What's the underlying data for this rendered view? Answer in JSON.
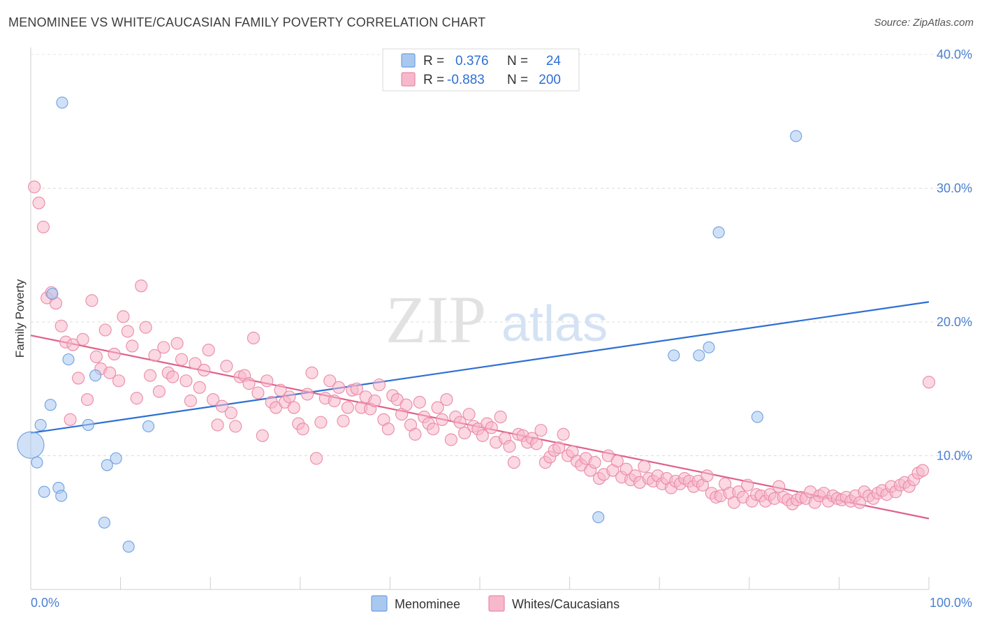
{
  "header": {
    "title": "MENOMINEE VS WHITE/CAUCASIAN FAMILY POVERTY CORRELATION CHART",
    "source": "Source: ZipAtlas.com"
  },
  "watermark": {
    "zip": "ZIP",
    "atlas": "atlas"
  },
  "legend": {
    "rows": [
      {
        "r_label": "R =",
        "r_value": "0.376",
        "n_label": "N =",
        "n_value": "24",
        "color": "#a9c8f0"
      },
      {
        "r_label": "R =",
        "r_value": "-0.883",
        "n_label": "N =",
        "n_value": "200",
        "color": "#f7b8cb"
      }
    ]
  },
  "chart_data": {
    "type": "scatter",
    "title": "MENOMINEE VS WHITE/CAUCASIAN FAMILY POVERTY CORRELATION CHART",
    "xlabel": "",
    "ylabel": "Family Poverty",
    "xlim": [
      0,
      100
    ],
    "ylim": [
      0,
      42
    ],
    "x_tick_labels": [
      "0.0%",
      "100.0%"
    ],
    "y_ticks": [
      10,
      20,
      30,
      40
    ],
    "y_tick_labels": [
      "10.0%",
      "20.0%",
      "30.0%",
      "40.0%"
    ],
    "grid": "horizontal dashed",
    "legend_position": "top-center",
    "series": [
      {
        "name": "Menominee",
        "color": "#a9c8f0",
        "stroke": "#6e9fe0",
        "trend_color": "#2e6fd3",
        "trend": [
          [
            0,
            11.7
          ],
          [
            100,
            21.5
          ]
        ],
        "points": [
          [
            3.5,
            36.4
          ],
          [
            0.0,
            10.8
          ],
          [
            0.7,
            9.5
          ],
          [
            1.1,
            12.3
          ],
          [
            1.5,
            7.3
          ],
          [
            2.2,
            13.8
          ],
          [
            2.4,
            22.1
          ],
          [
            3.1,
            7.6
          ],
          [
            3.4,
            7.0
          ],
          [
            4.2,
            17.2
          ],
          [
            6.4,
            12.3
          ],
          [
            7.2,
            16.0
          ],
          [
            8.2,
            5.0
          ],
          [
            8.5,
            9.3
          ],
          [
            9.5,
            9.8
          ],
          [
            10.9,
            3.2
          ],
          [
            13.1,
            12.2
          ],
          [
            63.2,
            5.4
          ],
          [
            71.6,
            17.5
          ],
          [
            74.4,
            17.5
          ],
          [
            75.5,
            18.1
          ],
          [
            76.6,
            26.7
          ],
          [
            80.9,
            12.9
          ],
          [
            85.2,
            33.9
          ]
        ]
      },
      {
        "name": "Whites/Caucasians",
        "color": "#f7b8cb",
        "stroke": "#e98aa8",
        "trend_color": "#e0608b",
        "trend": [
          [
            0,
            19.0
          ],
          [
            100,
            5.3
          ]
        ],
        "points": [
          [
            0.4,
            30.1
          ],
          [
            0.9,
            28.9
          ],
          [
            1.4,
            27.1
          ],
          [
            1.8,
            21.8
          ],
          [
            2.3,
            22.2
          ],
          [
            2.8,
            21.4
          ],
          [
            3.4,
            19.7
          ],
          [
            3.9,
            18.5
          ],
          [
            4.4,
            12.7
          ],
          [
            4.7,
            18.3
          ],
          [
            5.3,
            15.8
          ],
          [
            5.8,
            18.7
          ],
          [
            6.3,
            14.2
          ],
          [
            6.8,
            21.6
          ],
          [
            7.3,
            17.4
          ],
          [
            7.8,
            16.5
          ],
          [
            8.3,
            19.4
          ],
          [
            8.8,
            16.2
          ],
          [
            9.3,
            17.6
          ],
          [
            9.8,
            15.6
          ],
          [
            10.3,
            20.4
          ],
          [
            10.8,
            19.3
          ],
          [
            11.3,
            18.2
          ],
          [
            11.8,
            14.3
          ],
          [
            12.3,
            22.7
          ],
          [
            12.8,
            19.6
          ],
          [
            13.3,
            16.0
          ],
          [
            13.8,
            17.5
          ],
          [
            14.3,
            14.8
          ],
          [
            14.8,
            18.1
          ],
          [
            15.3,
            16.2
          ],
          [
            15.8,
            15.9
          ],
          [
            16.3,
            18.4
          ],
          [
            16.8,
            17.2
          ],
          [
            17.3,
            15.6
          ],
          [
            17.8,
            14.1
          ],
          [
            18.3,
            16.9
          ],
          [
            18.8,
            15.1
          ],
          [
            19.3,
            16.4
          ],
          [
            19.8,
            17.9
          ],
          [
            20.3,
            14.2
          ],
          [
            20.8,
            12.3
          ],
          [
            21.3,
            13.7
          ],
          [
            21.8,
            16.7
          ],
          [
            22.3,
            13.2
          ],
          [
            22.8,
            12.2
          ],
          [
            23.3,
            15.9
          ],
          [
            23.8,
            16.0
          ],
          [
            24.3,
            15.4
          ],
          [
            24.8,
            18.8
          ],
          [
            25.3,
            14.7
          ],
          [
            25.8,
            11.5
          ],
          [
            26.3,
            15.6
          ],
          [
            26.8,
            14.0
          ],
          [
            27.3,
            13.6
          ],
          [
            27.8,
            14.9
          ],
          [
            28.3,
            14.0
          ],
          [
            28.8,
            14.4
          ],
          [
            29.3,
            13.6
          ],
          [
            29.8,
            12.4
          ],
          [
            30.3,
            12.0
          ],
          [
            30.8,
            14.6
          ],
          [
            31.3,
            16.2
          ],
          [
            31.8,
            9.8
          ],
          [
            32.3,
            12.5
          ],
          [
            32.8,
            14.3
          ],
          [
            33.3,
            15.6
          ],
          [
            33.8,
            14.1
          ],
          [
            34.3,
            15.1
          ],
          [
            34.8,
            12.6
          ],
          [
            35.3,
            13.6
          ],
          [
            35.8,
            14.9
          ],
          [
            36.3,
            15.0
          ],
          [
            36.8,
            13.6
          ],
          [
            37.3,
            14.4
          ],
          [
            37.8,
            13.5
          ],
          [
            38.3,
            14.1
          ],
          [
            38.8,
            15.3
          ],
          [
            39.3,
            12.7
          ],
          [
            39.8,
            12.0
          ],
          [
            40.3,
            14.5
          ],
          [
            40.8,
            14.2
          ],
          [
            41.3,
            13.1
          ],
          [
            41.8,
            13.8
          ],
          [
            42.3,
            12.3
          ],
          [
            42.8,
            11.6
          ],
          [
            43.3,
            14.0
          ],
          [
            43.8,
            12.9
          ],
          [
            44.3,
            12.4
          ],
          [
            44.8,
            12.0
          ],
          [
            45.3,
            13.6
          ],
          [
            45.8,
            12.7
          ],
          [
            46.3,
            14.2
          ],
          [
            46.8,
            11.2
          ],
          [
            47.3,
            12.9
          ],
          [
            47.8,
            12.5
          ],
          [
            48.3,
            11.7
          ],
          [
            48.8,
            13.1
          ],
          [
            49.3,
            12.2
          ],
          [
            49.8,
            12.0
          ],
          [
            50.3,
            11.5
          ],
          [
            50.8,
            12.4
          ],
          [
            51.3,
            12.1
          ],
          [
            51.8,
            11.0
          ],
          [
            52.3,
            12.9
          ],
          [
            52.8,
            11.3
          ],
          [
            53.3,
            10.7
          ],
          [
            53.8,
            9.5
          ],
          [
            54.3,
            11.6
          ],
          [
            54.8,
            11.5
          ],
          [
            55.3,
            11.0
          ],
          [
            55.8,
            11.3
          ],
          [
            56.3,
            10.9
          ],
          [
            56.8,
            11.9
          ],
          [
            57.3,
            9.5
          ],
          [
            57.8,
            9.9
          ],
          [
            58.3,
            10.4
          ],
          [
            58.8,
            10.6
          ],
          [
            59.3,
            11.6
          ],
          [
            59.8,
            10.0
          ],
          [
            60.3,
            10.3
          ],
          [
            60.8,
            9.6
          ],
          [
            61.3,
            9.3
          ],
          [
            61.8,
            9.8
          ],
          [
            62.3,
            8.9
          ],
          [
            62.8,
            9.5
          ],
          [
            63.3,
            8.3
          ],
          [
            63.8,
            8.6
          ],
          [
            64.3,
            10.0
          ],
          [
            64.8,
            8.9
          ],
          [
            65.3,
            9.6
          ],
          [
            65.8,
            8.4
          ],
          [
            66.3,
            9.0
          ],
          [
            66.8,
            8.2
          ],
          [
            67.3,
            8.5
          ],
          [
            67.8,
            8.0
          ],
          [
            68.3,
            9.2
          ],
          [
            68.8,
            8.3
          ],
          [
            69.3,
            8.1
          ],
          [
            69.8,
            8.5
          ],
          [
            70.3,
            7.9
          ],
          [
            70.8,
            8.3
          ],
          [
            71.3,
            7.6
          ],
          [
            71.8,
            8.1
          ],
          [
            72.3,
            7.9
          ],
          [
            72.8,
            8.3
          ],
          [
            73.3,
            8.1
          ],
          [
            73.8,
            7.7
          ],
          [
            74.3,
            8.1
          ],
          [
            74.8,
            7.8
          ],
          [
            75.3,
            8.5
          ],
          [
            75.8,
            7.2
          ],
          [
            76.3,
            6.9
          ],
          [
            76.8,
            7.0
          ],
          [
            77.3,
            7.9
          ],
          [
            77.8,
            7.2
          ],
          [
            78.3,
            6.5
          ],
          [
            78.8,
            7.3
          ],
          [
            79.3,
            6.9
          ],
          [
            79.8,
            7.8
          ],
          [
            80.3,
            6.6
          ],
          [
            80.8,
            7.1
          ],
          [
            81.3,
            7.0
          ],
          [
            81.8,
            6.6
          ],
          [
            82.3,
            7.1
          ],
          [
            82.8,
            6.8
          ],
          [
            83.3,
            7.7
          ],
          [
            83.8,
            6.9
          ],
          [
            84.3,
            6.7
          ],
          [
            84.8,
            6.4
          ],
          [
            85.3,
            6.7
          ],
          [
            85.8,
            6.9
          ],
          [
            86.3,
            6.8
          ],
          [
            86.8,
            7.3
          ],
          [
            87.3,
            6.5
          ],
          [
            87.8,
            7.0
          ],
          [
            88.3,
            7.2
          ],
          [
            88.8,
            6.6
          ],
          [
            89.3,
            7.0
          ],
          [
            89.8,
            6.8
          ],
          [
            90.3,
            6.7
          ],
          [
            90.8,
            6.9
          ],
          [
            91.3,
            6.6
          ],
          [
            91.8,
            7.0
          ],
          [
            92.3,
            6.5
          ],
          [
            92.8,
            7.3
          ],
          [
            93.3,
            7.0
          ],
          [
            93.8,
            6.8
          ],
          [
            94.3,
            7.2
          ],
          [
            94.8,
            7.4
          ],
          [
            95.3,
            7.1
          ],
          [
            95.8,
            7.7
          ],
          [
            96.3,
            7.3
          ],
          [
            96.8,
            7.8
          ],
          [
            97.3,
            8.0
          ],
          [
            97.8,
            7.7
          ],
          [
            98.3,
            8.2
          ],
          [
            98.8,
            8.7
          ],
          [
            99.3,
            8.9
          ],
          [
            100.0,
            15.5
          ]
        ]
      }
    ]
  },
  "bottom_legend": {
    "items": [
      {
        "label": "Menominee",
        "color": "#a9c8f0"
      },
      {
        "label": "Whites/Caucasians",
        "color": "#f7b8cb"
      }
    ]
  }
}
